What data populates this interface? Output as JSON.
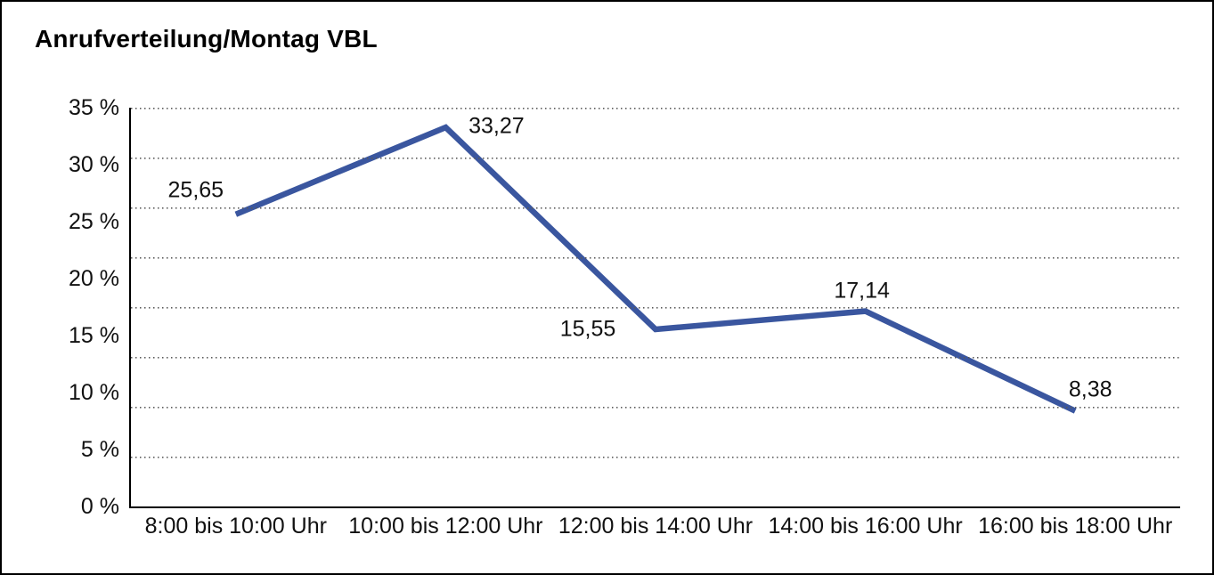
{
  "title": "Anrufverteilung/Montag VBL",
  "chart_data": {
    "type": "line",
    "title": "Anrufverteilung/Montag VBL",
    "categories": [
      "8:00 bis 10:00 Uhr",
      "10:00 bis 12:00 Uhr",
      "12:00 bis 14:00 Uhr",
      "14:00 bis 16:00 Uhr",
      "16:00 bis 18:00 Uhr"
    ],
    "values": [
      25.65,
      33.27,
      15.55,
      17.14,
      8.38
    ],
    "point_labels": [
      "25,65",
      "33,27",
      "15,55",
      "17,14",
      "8,38"
    ],
    "label_placements": [
      "above-left",
      "right",
      "left",
      "above",
      "above-right"
    ],
    "xlabel": "",
    "ylabel": "",
    "ylim": [
      0,
      35
    ],
    "y_ticks": [
      "35 %",
      "30 %",
      "25 %",
      "20 %",
      "15 %",
      "10 %",
      "5 %",
      "0 %"
    ],
    "grid": "dotted-horizontal",
    "grid_intervals": 8,
    "legend": "none",
    "line_color": "#3A569F",
    "axis_color": "#000000",
    "text_color": "#111111"
  }
}
